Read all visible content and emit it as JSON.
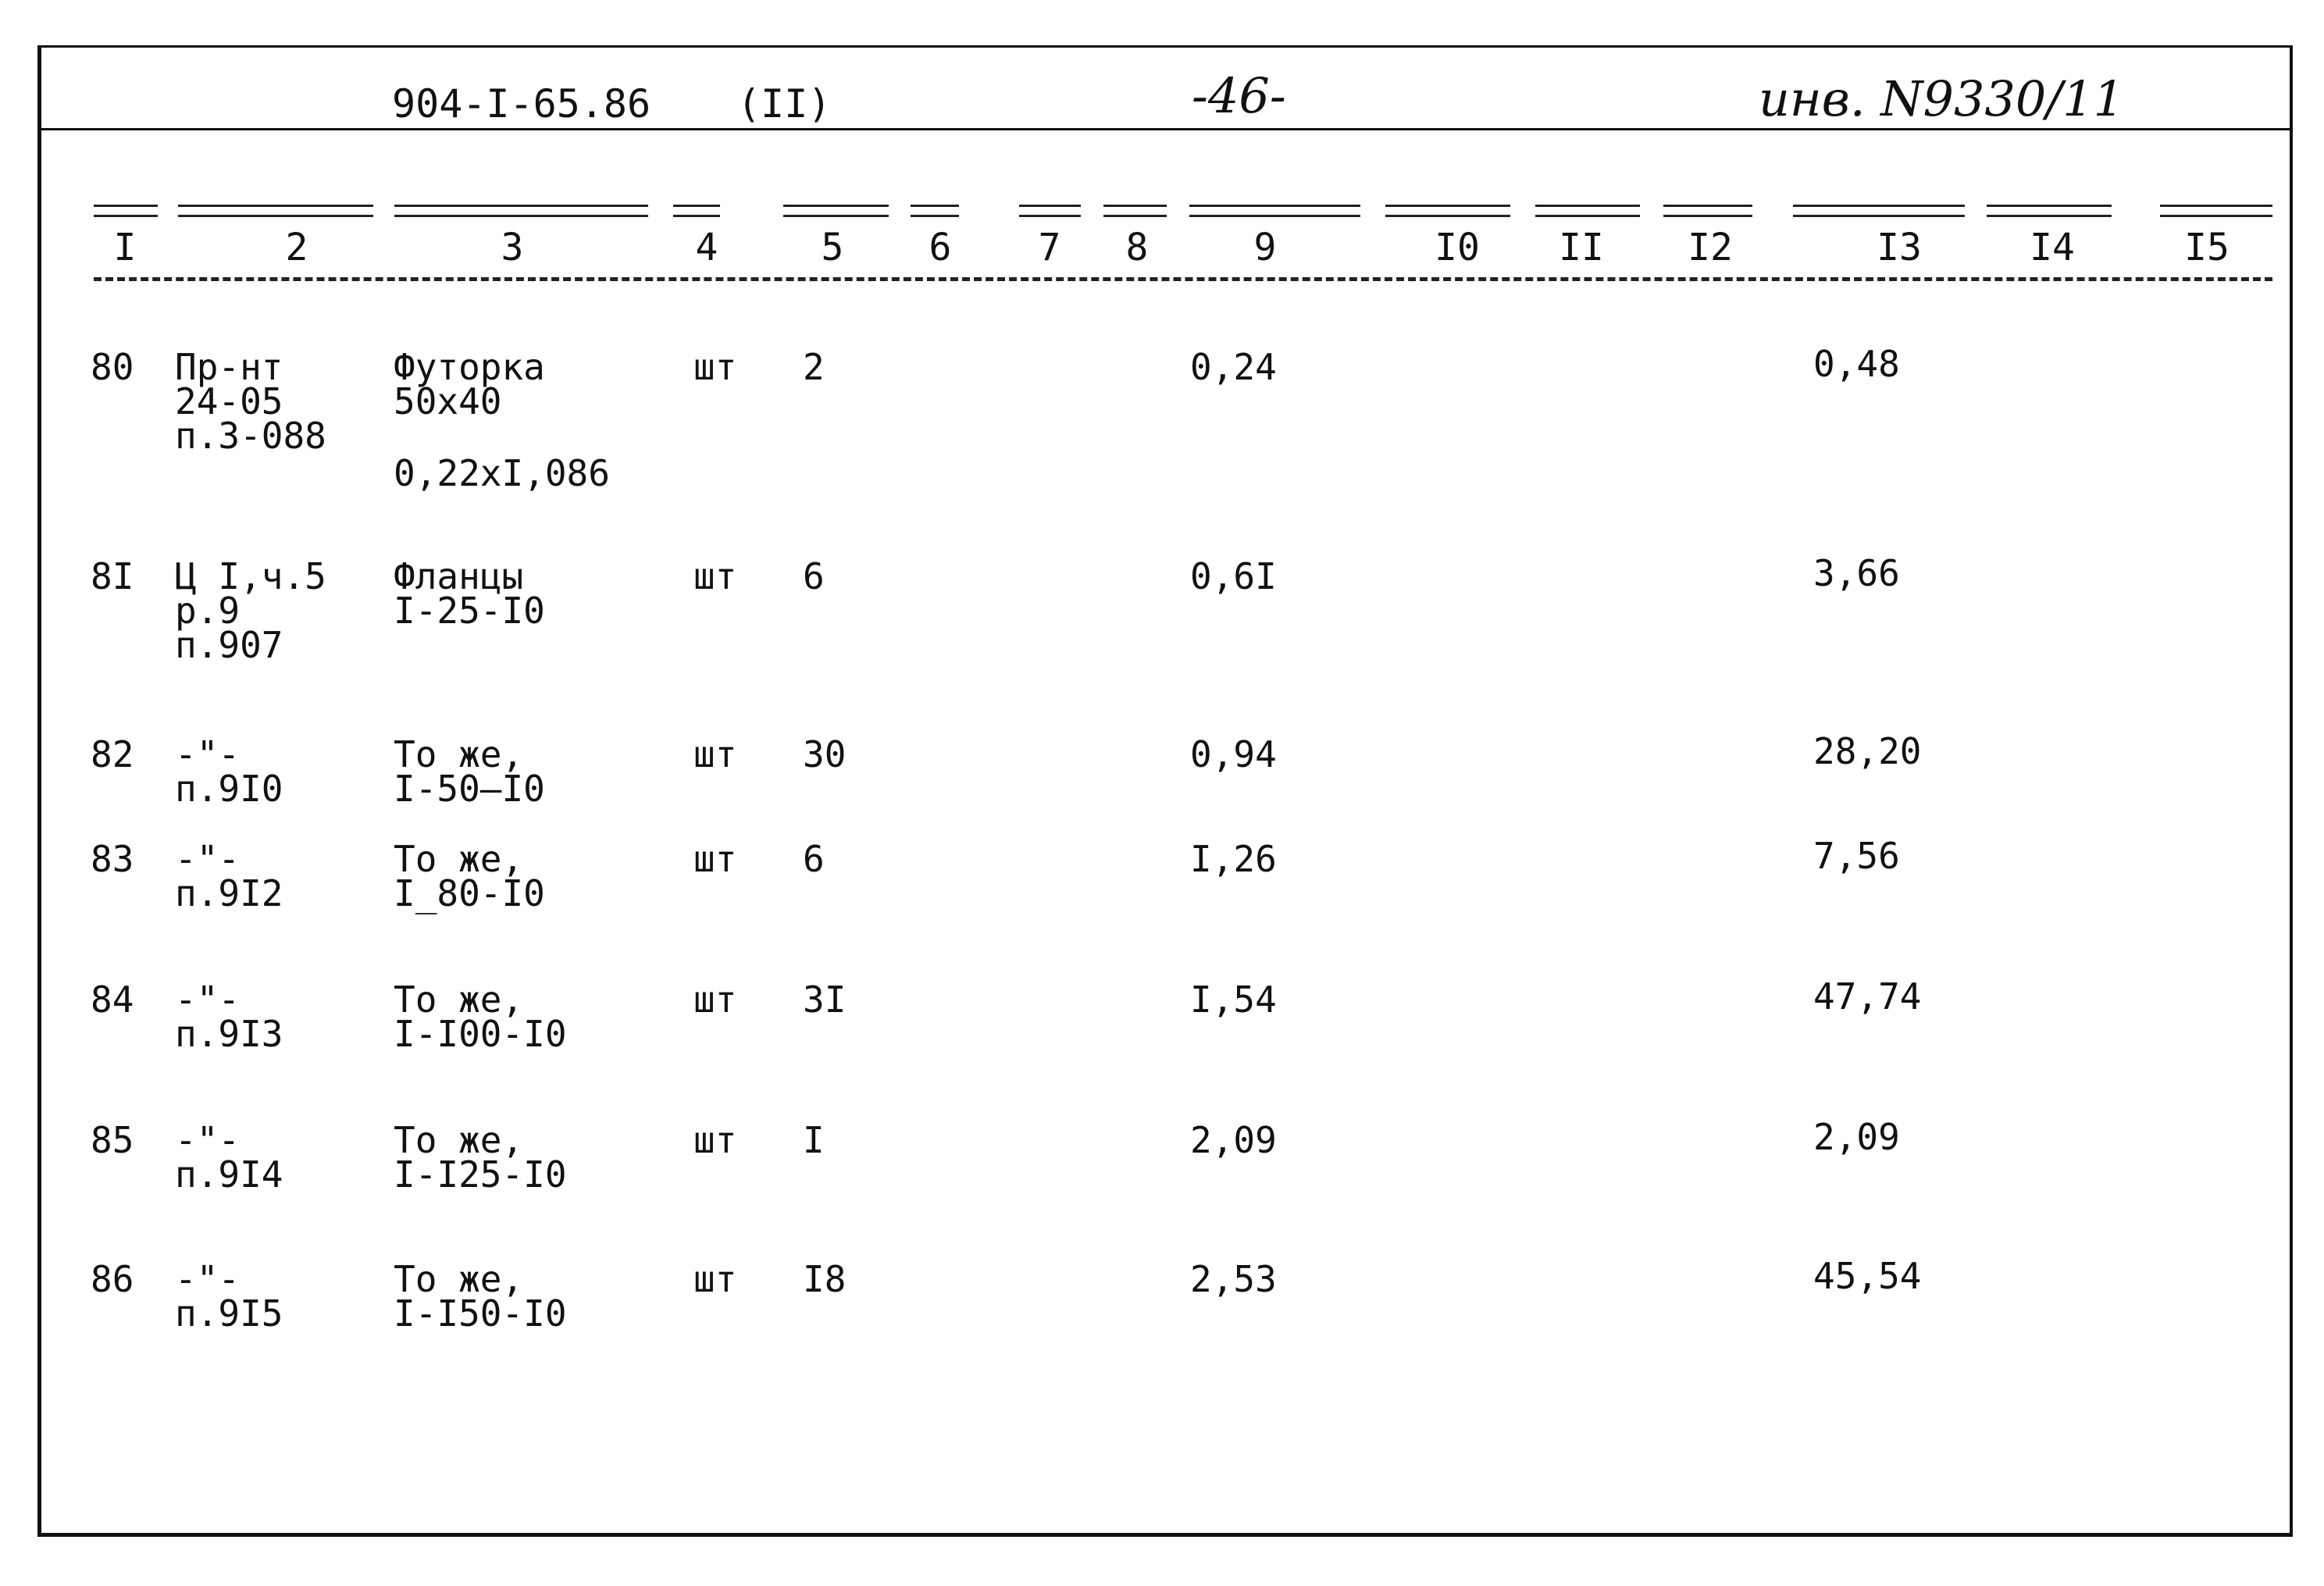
{
  "header": {
    "doc_code": "904-I-65.86",
    "part": "(II)",
    "page": "-46-",
    "inventory": "инв. N9330/11"
  },
  "columns": [
    "I",
    "2",
    "3",
    "4",
    "5",
    "6",
    "7",
    "8",
    "9",
    "I0",
    "II",
    "I2",
    "I3",
    "I4",
    "I5"
  ],
  "rows": [
    {
      "num": "80",
      "ref": "Пр-нт\n24-05\nп.3-088",
      "name": "Футорка\n50х40",
      "extra": "0,22хI,086",
      "unit": "шт",
      "qty": "2",
      "price": "0,24",
      "total": "0,48"
    },
    {
      "num": "8I",
      "ref": "Ц I,ч.5\nр.9\nп.907",
      "name": "Фланцы\nI-25-I0",
      "unit": "шт",
      "qty": "6",
      "price": "0,6I",
      "total": "3,66"
    },
    {
      "num": "82",
      "ref": "-\"-\nп.9I0",
      "name": "То же,\nI-50—I0",
      "unit": "шт",
      "qty": "30",
      "price": "0,94",
      "total": "28,20"
    },
    {
      "num": "83",
      "ref": "-\"-\nп.9I2",
      "name": "То же,\nI_80-I0",
      "unit": "шт",
      "qty": "6",
      "price": "I,26",
      "total": "7,56"
    },
    {
      "num": "84",
      "ref": "-\"-\nп.9I3",
      "name": "То же,\nI-I00-I0",
      "unit": "шт",
      "qty": "3I",
      "price": "I,54",
      "total": "47,74"
    },
    {
      "num": "85",
      "ref": "-\"-\nп.9I4",
      "name": "То же,\nI-I25-I0",
      "unit": "шт",
      "qty": "I",
      "price": "2,09",
      "total": "2,09"
    },
    {
      "num": "86",
      "ref": "-\"-\nп.9I5",
      "name": "То же,\nI-I50-I0",
      "unit": "шт",
      "qty": "I8",
      "price": "2,53",
      "total": "45,54"
    }
  ]
}
